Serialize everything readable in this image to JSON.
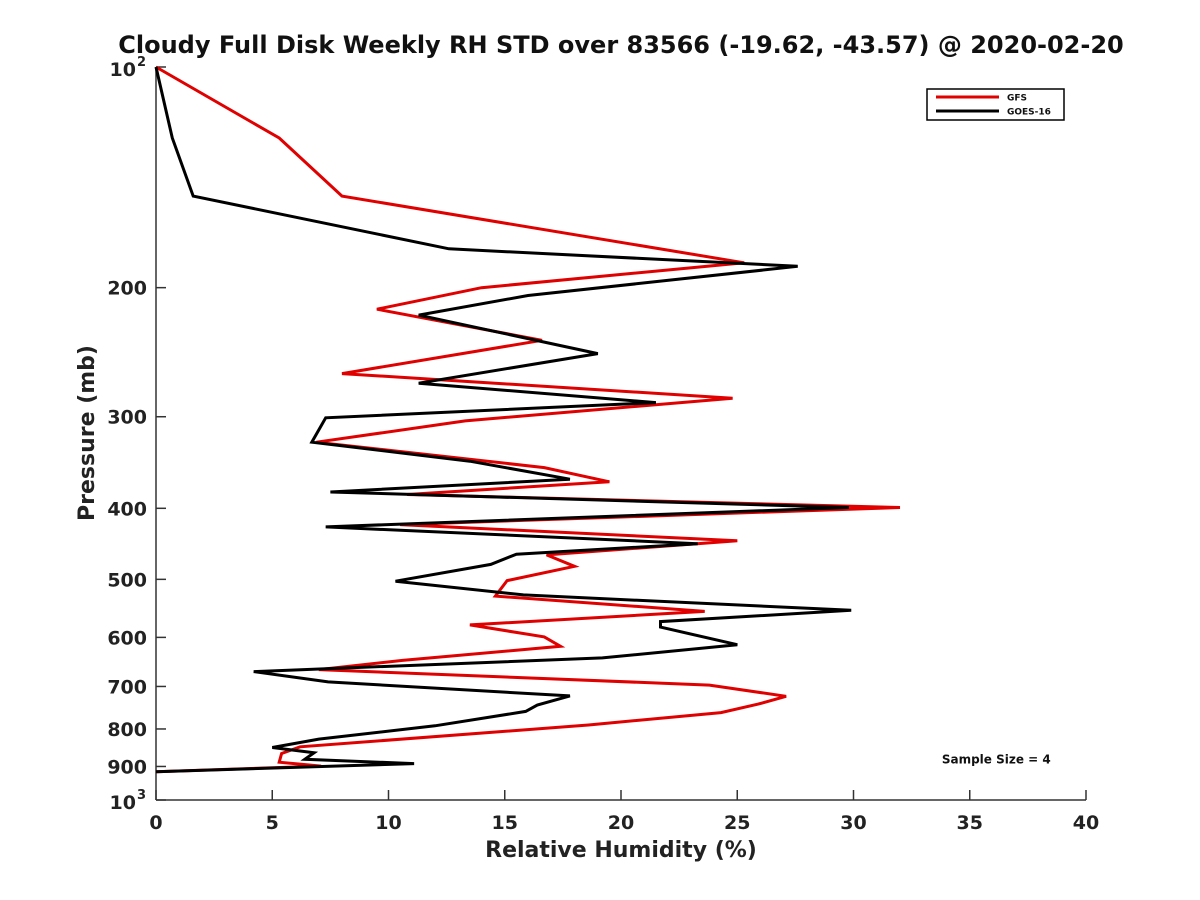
{
  "chart_data": {
    "type": "line",
    "title": "Cloudy Full Disk Weekly RH STD over 83566 (-19.62, -43.57) @ 2020-02-20",
    "xlabel": "Relative Humidity (%)",
    "ylabel": "Pressure (mb)",
    "xlim": [
      0,
      40
    ],
    "ylim": [
      100,
      1000
    ],
    "y_scale": "log",
    "y_reversed": true,
    "x_ticks": [
      0,
      5,
      10,
      15,
      20,
      25,
      30,
      35,
      40
    ],
    "y_ticks": [
      {
        "value": 100,
        "base": "10",
        "exp": "2"
      },
      {
        "value": 200,
        "label": "200"
      },
      {
        "value": 300,
        "label": "300"
      },
      {
        "value": 400,
        "label": "400"
      },
      {
        "value": 500,
        "label": "500"
      },
      {
        "value": 600,
        "label": "600"
      },
      {
        "value": 700,
        "label": "700"
      },
      {
        "value": 800,
        "label": "800"
      },
      {
        "value": 900,
        "label": "900"
      },
      {
        "value": 1000,
        "base": "10",
        "exp": "3"
      }
    ],
    "grid": false,
    "legend_position": "top-right",
    "series": [
      {
        "name": "GFS",
        "color": "#e00000",
        "points": [
          [
            0.0,
            100
          ],
          [
            5.3,
            125
          ],
          [
            8.0,
            150
          ],
          [
            25.3,
            185
          ],
          [
            14.0,
            200
          ],
          [
            9.5,
            214
          ],
          [
            16.6,
            236
          ],
          [
            8.0,
            262
          ],
          [
            24.8,
            283
          ],
          [
            13.3,
            304
          ],
          [
            6.9,
            325
          ],
          [
            16.7,
            352
          ],
          [
            19.5,
            368
          ],
          [
            10.8,
            383
          ],
          [
            32.0,
            399
          ],
          [
            10.5,
            421
          ],
          [
            25.0,
            443
          ],
          [
            16.8,
            463
          ],
          [
            18.0,
            480
          ],
          [
            15.1,
            502
          ],
          [
            14.6,
            527
          ],
          [
            23.6,
            553
          ],
          [
            13.5,
            577
          ],
          [
            16.7,
            599
          ],
          [
            17.4,
            617
          ],
          [
            10.6,
            645
          ],
          [
            7.0,
            664
          ],
          [
            23.8,
            697
          ],
          [
            27.1,
            722
          ],
          [
            25.9,
            740
          ],
          [
            24.3,
            760
          ],
          [
            18.6,
            790
          ],
          [
            6.2,
            846
          ],
          [
            5.4,
            864
          ],
          [
            5.3,
            888
          ],
          [
            7.1,
            899
          ],
          [
            0.0,
            915
          ]
        ]
      },
      {
        "name": "GOES-16",
        "color": "#000000",
        "points": [
          [
            0.0,
            100
          ],
          [
            0.7,
            125
          ],
          [
            1.6,
            150
          ],
          [
            12.6,
            177
          ],
          [
            27.6,
            187
          ],
          [
            16.0,
            205
          ],
          [
            11.3,
            218
          ],
          [
            19.0,
            246
          ],
          [
            11.3,
            270
          ],
          [
            21.5,
            287
          ],
          [
            7.3,
            301
          ],
          [
            6.7,
            325
          ],
          [
            13.5,
            345
          ],
          [
            17.8,
            365
          ],
          [
            7.5,
            380
          ],
          [
            29.8,
            399
          ],
          [
            7.3,
            424
          ],
          [
            23.3,
            447
          ],
          [
            15.5,
            462
          ],
          [
            14.4,
            477
          ],
          [
            10.3,
            503
          ],
          [
            15.8,
            525
          ],
          [
            29.9,
            551
          ],
          [
            21.7,
            571
          ],
          [
            21.7,
            581
          ],
          [
            25.0,
            614
          ],
          [
            19.2,
            640
          ],
          [
            4.2,
            668
          ],
          [
            7.4,
            690
          ],
          [
            17.8,
            721
          ],
          [
            16.4,
            742
          ],
          [
            15.9,
            757
          ],
          [
            12.0,
            792
          ],
          [
            7.0,
            826
          ],
          [
            5.0,
            848
          ],
          [
            6.8,
            862
          ],
          [
            6.4,
            880
          ],
          [
            11.1,
            892
          ],
          [
            0.0,
            915
          ]
        ]
      }
    ],
    "annotations": [
      {
        "text": "Sample Size = 4",
        "x": 33.8,
        "y": 892
      }
    ]
  }
}
